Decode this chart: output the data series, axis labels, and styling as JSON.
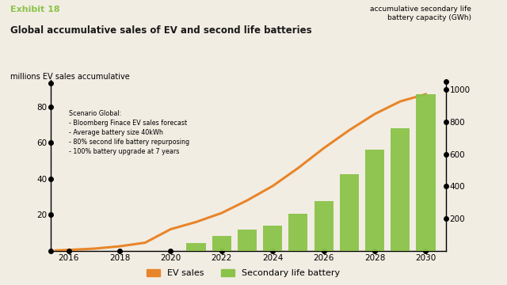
{
  "exhibit_label": "Exhibit 18",
  "title": "Global accumulative sales of EV and second life batteries",
  "left_ylabel": "millions EV sales accumulative",
  "right_ylabel": "accumulative secondary life\nbattery capacity (GWh)",
  "scenario_text": "Scenario Global:\n- Bloomberg Finace EV sales forecast\n- Average battery size 40kWh\n- 80% second life battery repurposing\n- 100% battery upgrade at 7 years",
  "ev_line_years": [
    2015.5,
    2016,
    2017,
    2018,
    2019,
    2020,
    2021,
    2022,
    2023,
    2024,
    2025,
    2026,
    2027,
    2028,
    2029,
    2030
  ],
  "ev_line_values": [
    0.2,
    0.5,
    1.2,
    2.5,
    4.5,
    12,
    16,
    21,
    28,
    36,
    46,
    57,
    67,
    76,
    83,
    87
  ],
  "bar_years": [
    2021,
    2022,
    2023,
    2024,
    2025,
    2026,
    2027,
    2028,
    2029,
    2030
  ],
  "bar_values_gwh": [
    50,
    90,
    130,
    155,
    230,
    310,
    475,
    625,
    760,
    970
  ],
  "left_ylim": [
    0,
    95
  ],
  "left_yticks": [
    20,
    40,
    60,
    80
  ],
  "right_ylim": [
    0,
    1060
  ],
  "right_yticks": [
    200,
    400,
    600,
    800,
    1000
  ],
  "xlim": [
    2015.3,
    2030.8
  ],
  "xticks": [
    2016,
    2018,
    2020,
    2022,
    2024,
    2026,
    2028,
    2030
  ],
  "bar_color": "#8BC34A",
  "line_color": "#E8852A",
  "bg_color": "#f2ede3",
  "exhibit_color": "#8BC34A",
  "title_color": "#1a1a1a",
  "left_dot_positions": [
    0,
    20,
    40,
    60,
    80,
    93
  ],
  "right_dot_positions": [
    200,
    400,
    600,
    800,
    1000,
    1050
  ],
  "bar_width": 0.75,
  "legend_ev_label": "EV sales",
  "legend_bat_label": "Secondary life battery"
}
